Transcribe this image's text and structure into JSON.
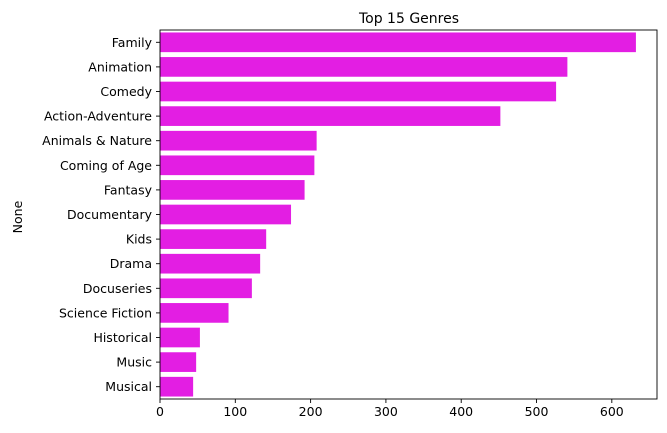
{
  "chart_data": {
    "type": "bar",
    "orientation": "horizontal",
    "title": "Top 15 Genres",
    "xlabel": "",
    "ylabel": "None",
    "categories": [
      "Family",
      "Animation",
      "Comedy",
      "Action-Adventure",
      "Animals & Nature",
      "Coming of Age",
      "Fantasy",
      "Documentary",
      "Kids",
      "Drama",
      "Docuseries",
      "Science Fiction",
      "Historical",
      "Music",
      "Musical"
    ],
    "values": [
      632,
      541,
      526,
      452,
      208,
      205,
      192,
      174,
      141,
      133,
      122,
      91,
      53,
      48,
      44
    ],
    "xlim": [
      0,
      660
    ],
    "xticks": [
      "0",
      "100",
      "200",
      "300",
      "400",
      "500",
      "600"
    ],
    "grid": false,
    "bar_color": "#e31ee3"
  }
}
